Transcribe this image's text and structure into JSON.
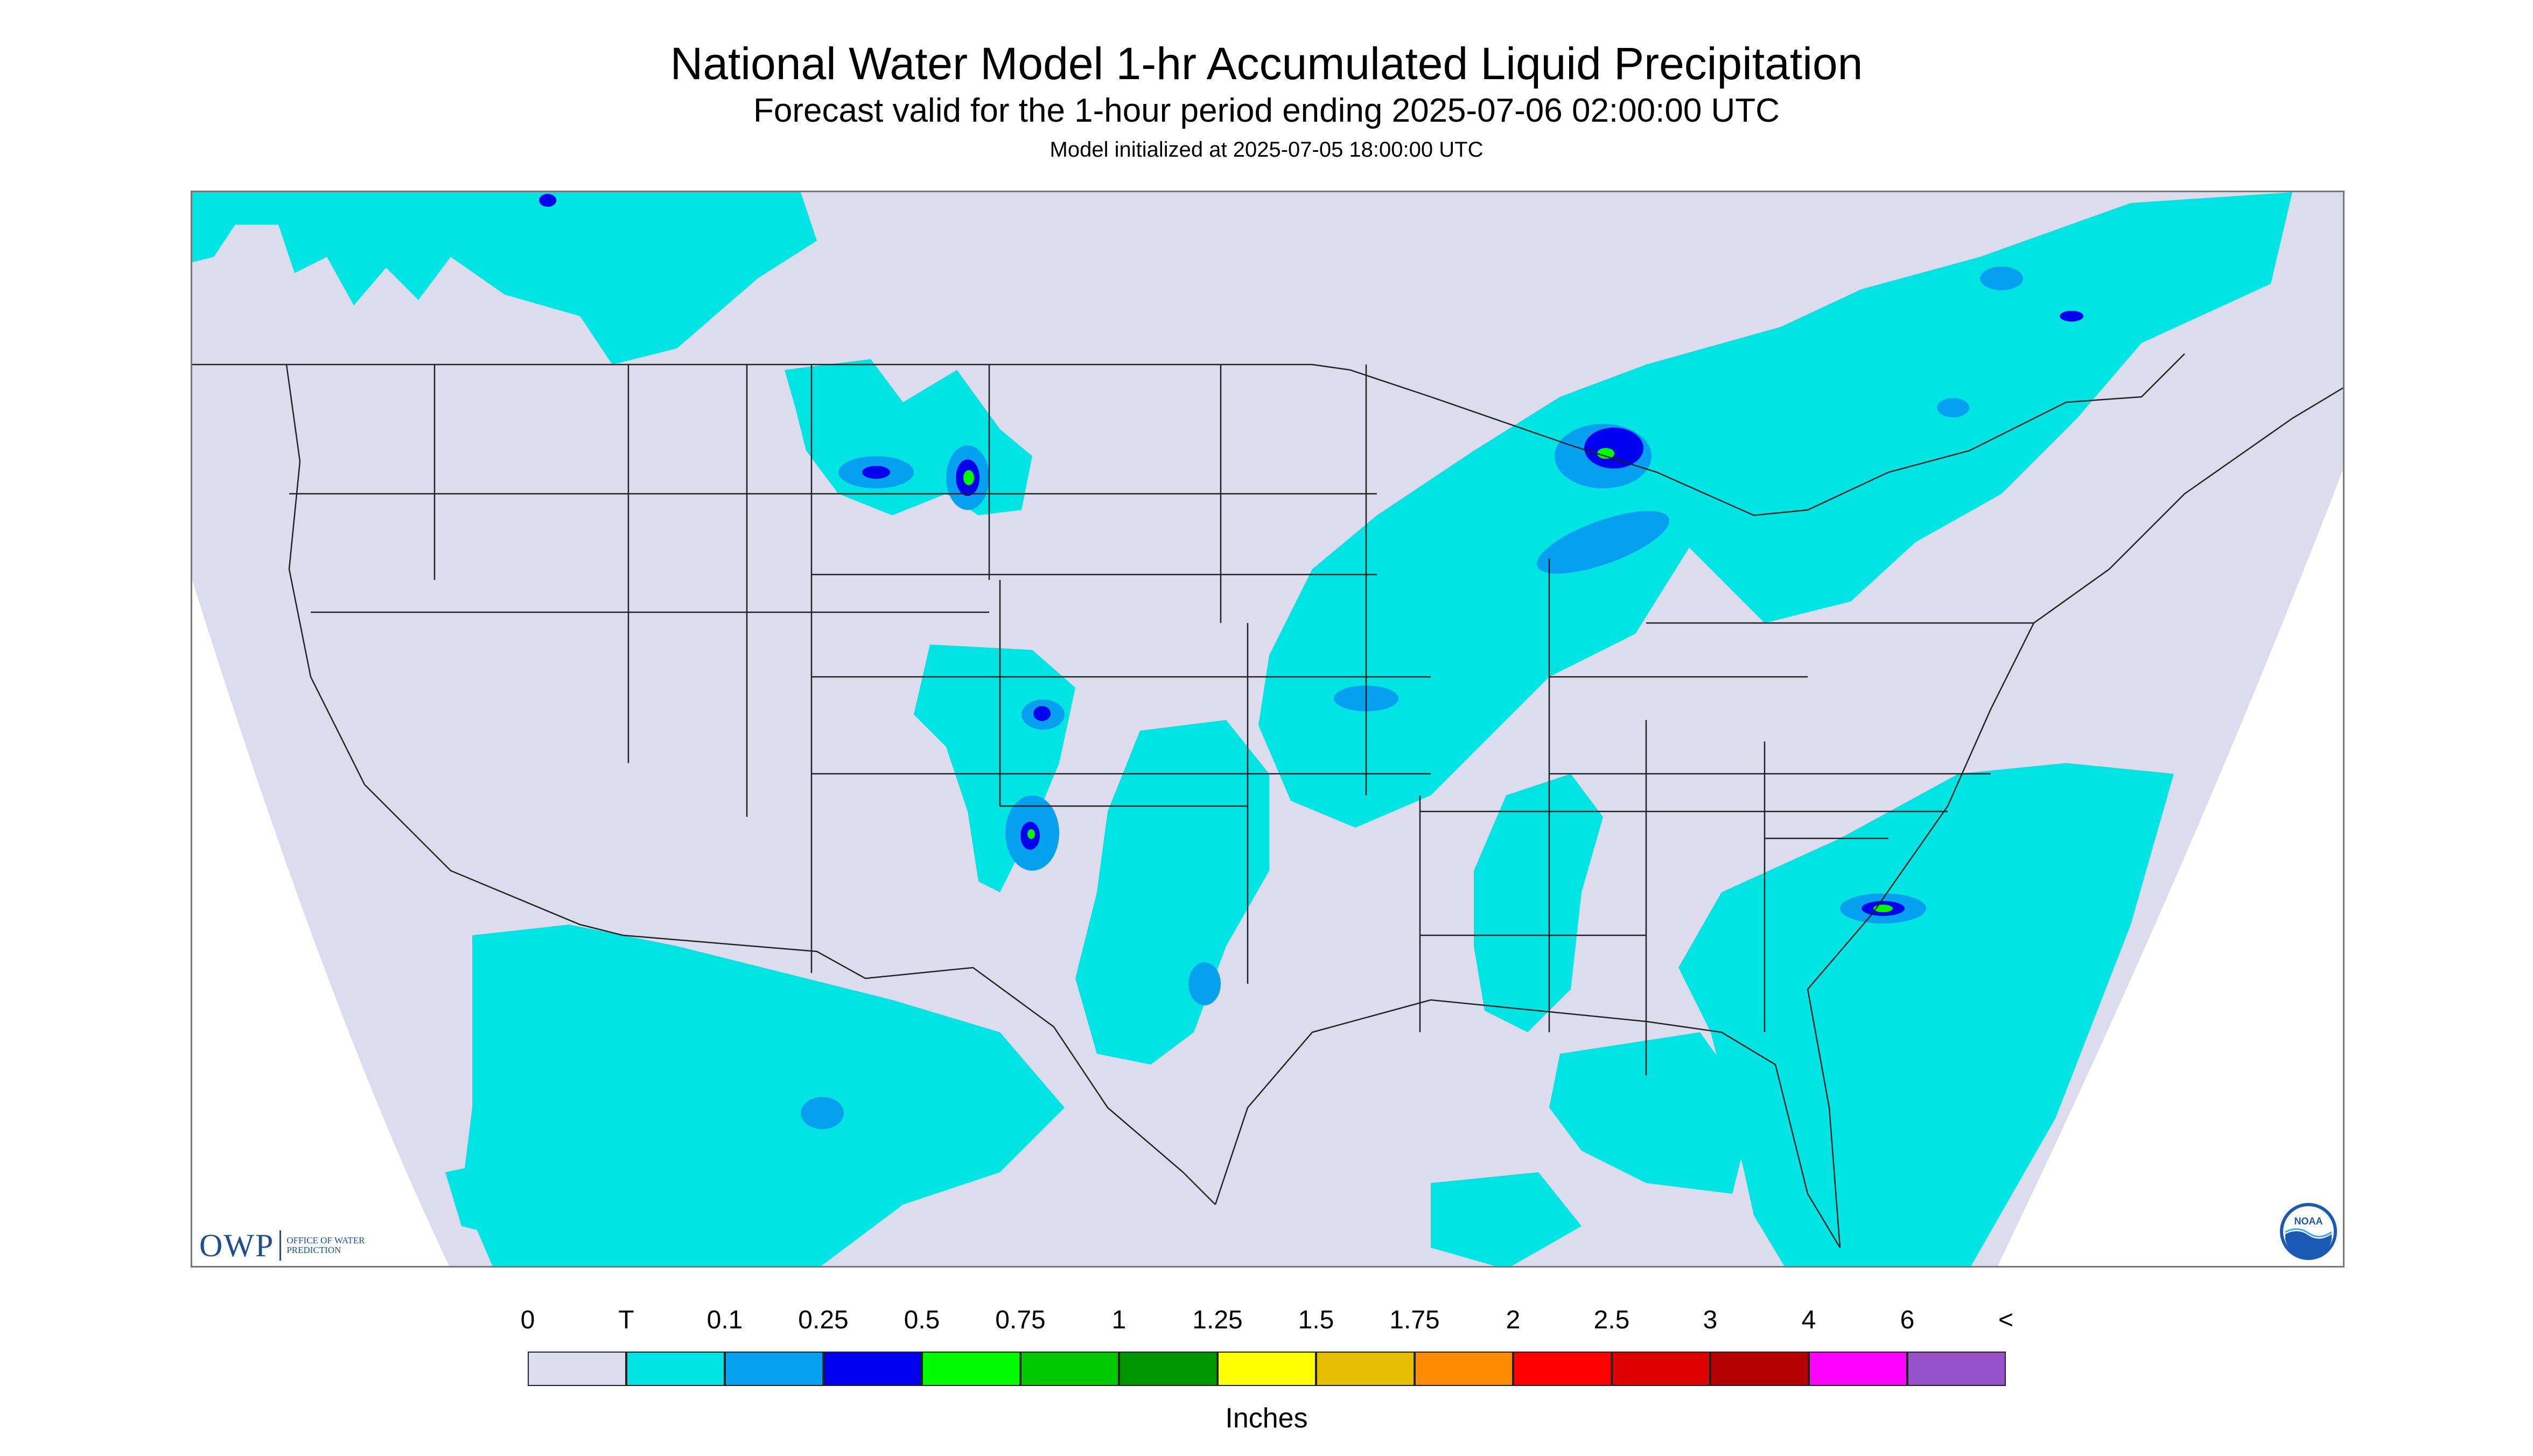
{
  "header": {
    "title": "National Water Model 1-hr Accumulated Liquid Precipitation",
    "subtitle": "Forecast valid for the 1-hour period ending 2025-07-06 02:00:00 UTC",
    "init_note": "Model initialized at 2025-07-05 18:00:00 UTC"
  },
  "logos": {
    "owp_letters": "OWP",
    "owp_subtitle": "OFFICE OF WATER PREDICTION",
    "noaa": "NOAA"
  },
  "colors": {
    "background_no_data": "#dcdcee",
    "trace": "#00e4e4",
    "low": "#05a0f0",
    "mid": "#0000f0",
    "green": "#00fa00",
    "boundary": "#222222"
  },
  "legend": {
    "unit": "Inches",
    "ticks": [
      "0",
      "T",
      "0.1",
      "0.25",
      "0.5",
      "0.75",
      "1",
      "1.25",
      "1.5",
      "1.75",
      "2",
      "2.5",
      "3",
      "4",
      "6",
      "<"
    ],
    "bins": [
      {
        "color": "#dcdcee"
      },
      {
        "color": "#00e4e4"
      },
      {
        "color": "#05a0f0"
      },
      {
        "color": "#0000f0"
      },
      {
        "color": "#00fa00"
      },
      {
        "color": "#00c800"
      },
      {
        "color": "#009600"
      },
      {
        "color": "#ffff00"
      },
      {
        "color": "#e6be00"
      },
      {
        "color": "#ff8c00"
      },
      {
        "color": "#ff0000"
      },
      {
        "color": "#dc0000"
      },
      {
        "color": "#b40000"
      },
      {
        "color": "#ff00ff"
      },
      {
        "color": "#9650c8"
      }
    ]
  }
}
